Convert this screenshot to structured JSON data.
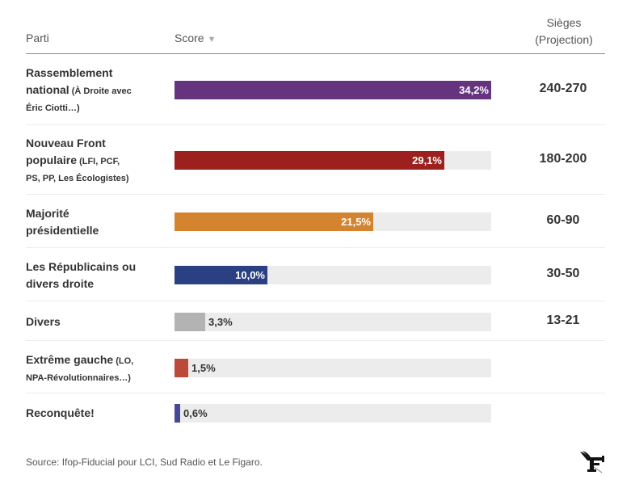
{
  "header": {
    "party_label": "Parti",
    "score_label": "Score",
    "sort_icon": "triangle-down",
    "seats_label_line1": "Sièges",
    "seats_label_line2": "(Projection)"
  },
  "chart_data": {
    "type": "bar",
    "orientation": "horizontal",
    "title": "",
    "xlabel": "Score",
    "ylabel": "Parti",
    "xlim": [
      0,
      34.2
    ],
    "grid": false,
    "categories": [
      "Rassemblement national (À Droite avec Éric Ciotti…)",
      "Nouveau Front populaire (LFI, PCF, PS, PP, Les Écologistes)",
      "Majorité présidentielle",
      "Les Républicains ou divers droite",
      "Divers",
      "Extrême gauche (LO, NPA-Révolutionnaires…)",
      "Reconquête!"
    ],
    "values": [
      34.2,
      29.1,
      21.5,
      10.0,
      3.3,
      1.5,
      0.6
    ],
    "value_labels": [
      "34,2%",
      "29,1%",
      "21,5%",
      "10,0%",
      "3,3%",
      "1,5%",
      "0,6%"
    ],
    "colors": [
      "#66347f",
      "#9c211e",
      "#d4832f",
      "#2b4083",
      "#b3b3b3",
      "#bb4a3a",
      "#474898"
    ],
    "seats": [
      "240-270",
      "180-200",
      "60-90",
      "30-50",
      "13-21",
      "",
      ""
    ]
  },
  "rows": [
    {
      "name": "Rassemblement",
      "name2": "national",
      "note": "(À Droite avec",
      "note2": "Éric Ciotti…)"
    },
    {
      "name": "Nouveau Front",
      "name2": "populaire",
      "note": "(LFI, PCF,",
      "note2": "PS, PP, Les Écologistes)"
    },
    {
      "name": "Majorité",
      "name2": "présidentielle",
      "note": "",
      "note2": ""
    },
    {
      "name": "Les Républicains ou",
      "name2": "divers droite",
      "note": "",
      "note2": ""
    },
    {
      "name": "Divers",
      "name2": "",
      "note": "",
      "note2": ""
    },
    {
      "name": "Extrême gauche",
      "name2": "",
      "note": "(LO,",
      "note2": "NPA-Révolutionnaires…)"
    },
    {
      "name": "Reconquête!",
      "name2": "",
      "note": "",
      "note2": ""
    }
  ],
  "footer": {
    "source": "Source: Ifop-Fiducial pour LCI, Sud Radio et Le Figaro.",
    "logo": "le-figaro-logo"
  }
}
